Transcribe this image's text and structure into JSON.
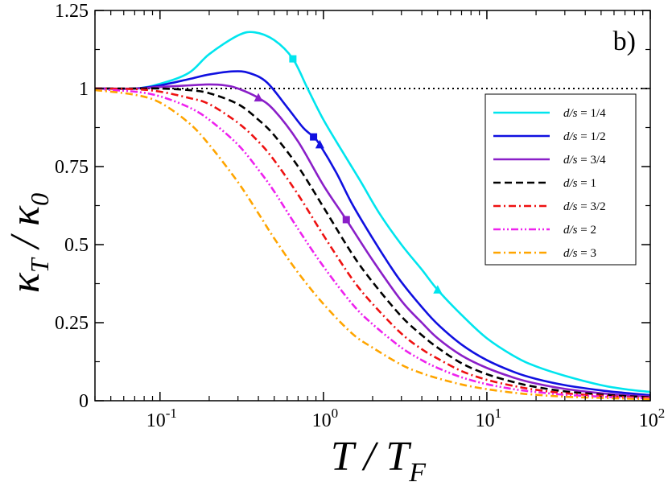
{
  "chart_data": {
    "type": "line",
    "panel_label": "b)",
    "xlabel": {
      "main": "T / T",
      "sub": "F"
    },
    "ylabel": {
      "part1": "κ",
      "sub1": "T",
      "mid": " / κ",
      "sub2": "0"
    },
    "xscale": "log",
    "xlim": [
      0.04,
      100
    ],
    "ylim": [
      0,
      1.25
    ],
    "xticks": [
      {
        "value": 0.1,
        "base": "10",
        "exp": "-1"
      },
      {
        "value": 1,
        "base": "10",
        "exp": "0"
      },
      {
        "value": 10,
        "base": "10",
        "exp": "1"
      },
      {
        "value": 100,
        "base": "10",
        "exp": "2"
      }
    ],
    "yticks": [
      {
        "value": 0,
        "label": "0"
      },
      {
        "value": 0.25,
        "label": "0.25"
      },
      {
        "value": 0.5,
        "label": "0.5"
      },
      {
        "value": 0.75,
        "label": "0.75"
      },
      {
        "value": 1,
        "label": "1"
      },
      {
        "value": 1.25,
        "label": "1.25"
      }
    ],
    "reference_line": {
      "y": 1,
      "style": "dotted"
    },
    "legend_position": "top-right",
    "series": [
      {
        "name": "d/s = 1/4",
        "label_prefix": "d/s",
        "label_value": " = 1/4",
        "color": "#00e5ee",
        "dash": "solid",
        "x": [
          0.04,
          0.07,
          0.1,
          0.15,
          0.2,
          0.3,
          0.38,
          0.5,
          0.65,
          0.8,
          1,
          1.3,
          1.7,
          2.2,
          3,
          4,
          5,
          7,
          10,
          15,
          20,
          30,
          50,
          70,
          100
        ],
        "y": [
          1.0,
          1.0,
          1.015,
          1.05,
          1.11,
          1.17,
          1.18,
          1.155,
          1.095,
          1.0,
          0.9,
          0.8,
          0.7,
          0.6,
          0.5,
          0.42,
          0.355,
          0.275,
          0.2,
          0.14,
          0.11,
          0.08,
          0.05,
          0.037,
          0.028
        ],
        "markers": [
          {
            "x": 0.65,
            "y": 1.095,
            "shape": "square"
          },
          {
            "x": 5,
            "y": 0.355,
            "shape": "triangle"
          }
        ]
      },
      {
        "name": "d/s = 1/2",
        "label_prefix": "d/s",
        "label_value": " = 1/2",
        "color": "#1010e0",
        "dash": "solid",
        "x": [
          0.04,
          0.07,
          0.1,
          0.15,
          0.2,
          0.28,
          0.35,
          0.45,
          0.6,
          0.75,
          0.87,
          0.95,
          1.2,
          1.5,
          2,
          2.5,
          3,
          4,
          5,
          7,
          10,
          15,
          20,
          30,
          50,
          70,
          100
        ],
        "y": [
          1.0,
          1.0,
          1.01,
          1.03,
          1.045,
          1.055,
          1.05,
          1.02,
          0.94,
          0.875,
          0.845,
          0.82,
          0.73,
          0.63,
          0.52,
          0.44,
          0.38,
          0.3,
          0.245,
          0.18,
          0.13,
          0.09,
          0.07,
          0.05,
          0.033,
          0.025,
          0.018
        ],
        "markers": [
          {
            "x": 0.87,
            "y": 0.845,
            "shape": "square"
          },
          {
            "x": 0.95,
            "y": 0.82,
            "shape": "triangle"
          }
        ]
      },
      {
        "name": "d/s = 3/4",
        "label_prefix": "d/s",
        "label_value": " = 3/4",
        "color": "#8a1fc8",
        "dash": "solid",
        "x": [
          0.04,
          0.07,
          0.1,
          0.15,
          0.2,
          0.25,
          0.3,
          0.4,
          0.5,
          0.7,
          1,
          1.38,
          2,
          3,
          4,
          5,
          7,
          10,
          15,
          20,
          30,
          50,
          70,
          100
        ],
        "y": [
          1.0,
          1.0,
          1.005,
          1.01,
          1.013,
          1.01,
          1.0,
          0.97,
          0.93,
          0.83,
          0.69,
          0.58,
          0.45,
          0.32,
          0.25,
          0.2,
          0.145,
          0.105,
          0.072,
          0.055,
          0.038,
          0.024,
          0.018,
          0.013
        ],
        "markers": [
          {
            "x": 0.4,
            "y": 0.97,
            "shape": "triangle"
          },
          {
            "x": 1.38,
            "y": 0.58,
            "shape": "square"
          }
        ]
      },
      {
        "name": "d/s = 1",
        "label_prefix": "d/s",
        "label_value": " = 1",
        "color": "#000000",
        "dash": "dashed",
        "x": [
          0.04,
          0.07,
          0.1,
          0.15,
          0.2,
          0.3,
          0.4,
          0.5,
          0.7,
          1,
          1.5,
          2,
          3,
          4,
          5,
          7,
          10,
          15,
          20,
          30,
          50,
          70,
          100
        ],
        "y": [
          1.0,
          1.0,
          1.0,
          0.995,
          0.985,
          0.95,
          0.9,
          0.85,
          0.75,
          0.62,
          0.47,
          0.38,
          0.27,
          0.21,
          0.17,
          0.12,
          0.085,
          0.058,
          0.044,
          0.03,
          0.02,
          0.015,
          0.011
        ],
        "markers": []
      },
      {
        "name": "d/s = 3/2",
        "label_prefix": "d/s",
        "label_value": " = 3/2",
        "color": "#ee1111",
        "dash": "dashdot",
        "x": [
          0.04,
          0.07,
          0.1,
          0.15,
          0.2,
          0.3,
          0.4,
          0.5,
          0.7,
          1,
          1.5,
          2,
          3,
          4,
          5,
          7,
          10,
          15,
          20,
          30,
          50,
          70,
          100
        ],
        "y": [
          1.0,
          0.998,
          0.99,
          0.97,
          0.95,
          0.89,
          0.83,
          0.77,
          0.66,
          0.53,
          0.39,
          0.31,
          0.215,
          0.165,
          0.135,
          0.095,
          0.067,
          0.046,
          0.035,
          0.024,
          0.016,
          0.012,
          0.009
        ],
        "markers": []
      },
      {
        "name": "d/s = 2",
        "label_prefix": "d/s",
        "label_value": " = 2",
        "color": "#ee22ee",
        "dash": "dashdotdot",
        "x": [
          0.04,
          0.07,
          0.1,
          0.15,
          0.2,
          0.3,
          0.4,
          0.5,
          0.7,
          1,
          1.5,
          2,
          3,
          4,
          5,
          7,
          10,
          15,
          20,
          30,
          50,
          70,
          100
        ],
        "y": [
          0.998,
          0.99,
          0.975,
          0.94,
          0.9,
          0.82,
          0.74,
          0.67,
          0.55,
          0.43,
          0.31,
          0.245,
          0.17,
          0.13,
          0.105,
          0.075,
          0.053,
          0.036,
          0.028,
          0.019,
          0.013,
          0.01,
          0.007
        ],
        "markers": []
      },
      {
        "name": "d/s = 3",
        "label_prefix": "d/s",
        "label_value": " = 3",
        "color": "#ffa500",
        "dash": "dashdot",
        "x": [
          0.04,
          0.07,
          0.1,
          0.15,
          0.2,
          0.3,
          0.4,
          0.5,
          0.7,
          1,
          1.5,
          2,
          3,
          4,
          5,
          7,
          10,
          15,
          20,
          30,
          50,
          70,
          100
        ],
        "y": [
          0.995,
          0.98,
          0.955,
          0.89,
          0.82,
          0.7,
          0.6,
          0.52,
          0.41,
          0.31,
          0.215,
          0.17,
          0.115,
          0.088,
          0.072,
          0.052,
          0.037,
          0.025,
          0.019,
          0.013,
          0.009,
          0.007,
          0.005
        ],
        "markers": []
      }
    ]
  }
}
